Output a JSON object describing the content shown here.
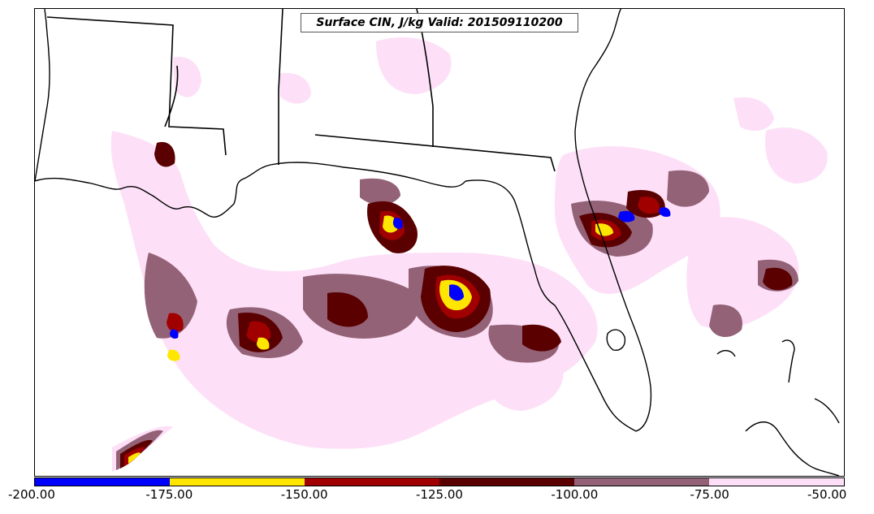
{
  "title": "Surface CIN, J/kg Valid: 201509110200",
  "legend": {
    "bins": [
      {
        "min": -200,
        "max": -175,
        "color": "#0000ff"
      },
      {
        "min": -175,
        "max": -150,
        "color": "#ffe600"
      },
      {
        "min": -150,
        "max": -125,
        "color": "#a00000"
      },
      {
        "min": -125,
        "max": -100,
        "color": "#5a0000"
      },
      {
        "min": -100,
        "max": -75,
        "color": "#946277"
      },
      {
        "min": -75,
        "max": -50,
        "color": "#fde0f8"
      }
    ],
    "ticks": [
      "-200.00",
      "-175.00",
      "-150.00",
      "-125.00",
      "-100.00",
      "-75.00",
      "-50.00"
    ]
  },
  "colors": {
    "coast": "#000000",
    "background": "#ffffff"
  }
}
